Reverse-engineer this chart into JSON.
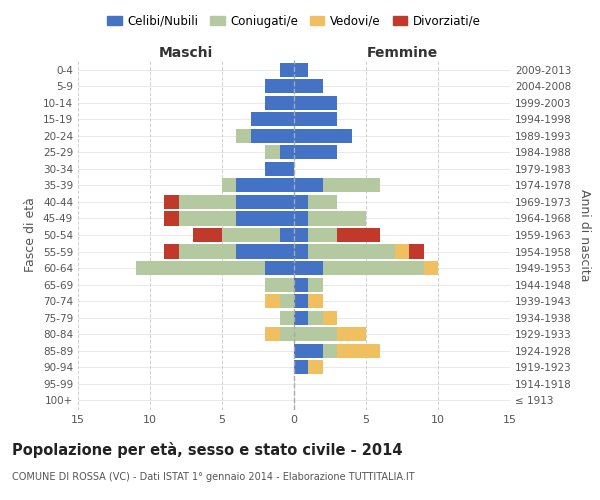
{
  "age_groups": [
    "100+",
    "95-99",
    "90-94",
    "85-89",
    "80-84",
    "75-79",
    "70-74",
    "65-69",
    "60-64",
    "55-59",
    "50-54",
    "45-49",
    "40-44",
    "35-39",
    "30-34",
    "25-29",
    "20-24",
    "15-19",
    "10-14",
    "5-9",
    "0-4"
  ],
  "birth_years": [
    "≤ 1913",
    "1914-1918",
    "1919-1923",
    "1924-1928",
    "1929-1933",
    "1934-1938",
    "1939-1943",
    "1944-1948",
    "1949-1953",
    "1954-1958",
    "1959-1963",
    "1964-1968",
    "1969-1973",
    "1974-1978",
    "1979-1983",
    "1984-1988",
    "1989-1993",
    "1994-1998",
    "1999-2003",
    "2004-2008",
    "2009-2013"
  ],
  "colors": {
    "celibi": "#4472c4",
    "coniugati": "#b5c9a0",
    "vedovi": "#f0c060",
    "divorziati": "#c0392b"
  },
  "male": {
    "celibi": [
      0,
      0,
      0,
      0,
      0,
      0,
      0,
      0,
      2,
      4,
      1,
      4,
      4,
      4,
      2,
      1,
      3,
      3,
      2,
      2,
      1
    ],
    "coniugati": [
      0,
      0,
      0,
      0,
      1,
      1,
      1,
      2,
      9,
      4,
      4,
      4,
      4,
      1,
      0,
      1,
      1,
      0,
      0,
      0,
      0
    ],
    "vedovi": [
      0,
      0,
      0,
      0,
      1,
      0,
      1,
      0,
      0,
      0,
      0,
      0,
      0,
      0,
      0,
      0,
      0,
      0,
      0,
      0,
      0
    ],
    "divorziati": [
      0,
      0,
      0,
      0,
      0,
      0,
      0,
      0,
      0,
      1,
      2,
      1,
      1,
      0,
      0,
      0,
      0,
      0,
      0,
      0,
      0
    ]
  },
  "female": {
    "celibi": [
      0,
      0,
      1,
      2,
      0,
      1,
      1,
      1,
      2,
      1,
      1,
      1,
      1,
      2,
      0,
      3,
      4,
      3,
      3,
      2,
      1
    ],
    "coniugati": [
      0,
      0,
      0,
      1,
      3,
      1,
      0,
      1,
      7,
      6,
      2,
      4,
      2,
      4,
      0,
      0,
      0,
      0,
      0,
      0,
      0
    ],
    "vedovi": [
      0,
      0,
      1,
      3,
      2,
      1,
      1,
      0,
      1,
      1,
      0,
      0,
      0,
      0,
      0,
      0,
      0,
      0,
      0,
      0,
      0
    ],
    "divorziati": [
      0,
      0,
      0,
      0,
      0,
      0,
      0,
      0,
      0,
      1,
      3,
      0,
      0,
      0,
      0,
      0,
      0,
      0,
      0,
      0,
      0
    ]
  },
  "xlim": 15,
  "title": "Popolazione per età, sesso e stato civile - 2014",
  "subtitle": "COMUNE DI ROSSA (VC) - Dati ISTAT 1° gennaio 2014 - Elaborazione TUTTITALIA.IT",
  "ylabel_left": "Fasce di età",
  "ylabel_right": "Anni di nascita",
  "xlabel_maschi": "Maschi",
  "xlabel_femmine": "Femmine",
  "legend_labels": [
    "Celibi/Nubili",
    "Coniugati/e",
    "Vedovi/e",
    "Divorziati/e"
  ],
  "bg_color": "#ffffff",
  "grid_color": "#cccccc"
}
